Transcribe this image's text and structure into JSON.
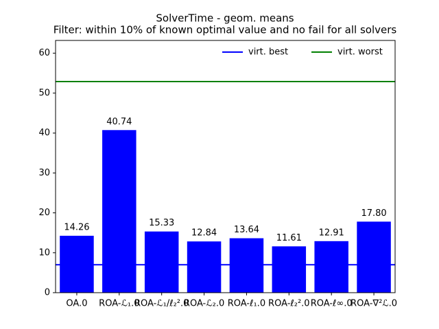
{
  "chart_data": {
    "type": "bar",
    "title": "SolverTime - geom. means",
    "subtitle": "Filter: within 10% of known optimal value and no fail for all solvers",
    "categories": [
      "OA.0",
      "ROA-ℒ₁.0",
      "ROA-ℒ₁/ℓ₂².0",
      "ROA-ℒ₂.0",
      "ROA-ℓ₁.0",
      "ROA-ℓ₂².0",
      "ROA-ℓ∞.0",
      "ROA-∇²ℒ.0"
    ],
    "values": [
      14.26,
      40.74,
      15.33,
      12.84,
      13.64,
      11.61,
      12.91,
      17.8
    ],
    "value_labels": [
      "14.26",
      "40.74",
      "15.33",
      "12.84",
      "13.64",
      "11.61",
      "12.91",
      "17.80"
    ],
    "color": "#0000ff",
    "reference_lines": [
      {
        "name": "virt. best",
        "color": "#0000ff",
        "value": 7.0
      },
      {
        "name": "virt. worst",
        "color": "#008000",
        "value": 52.9
      }
    ],
    "legend": "upper right",
    "ylim": [
      0,
      63.2
    ],
    "yticks": [
      0,
      10,
      20,
      30,
      40,
      50,
      60
    ]
  }
}
